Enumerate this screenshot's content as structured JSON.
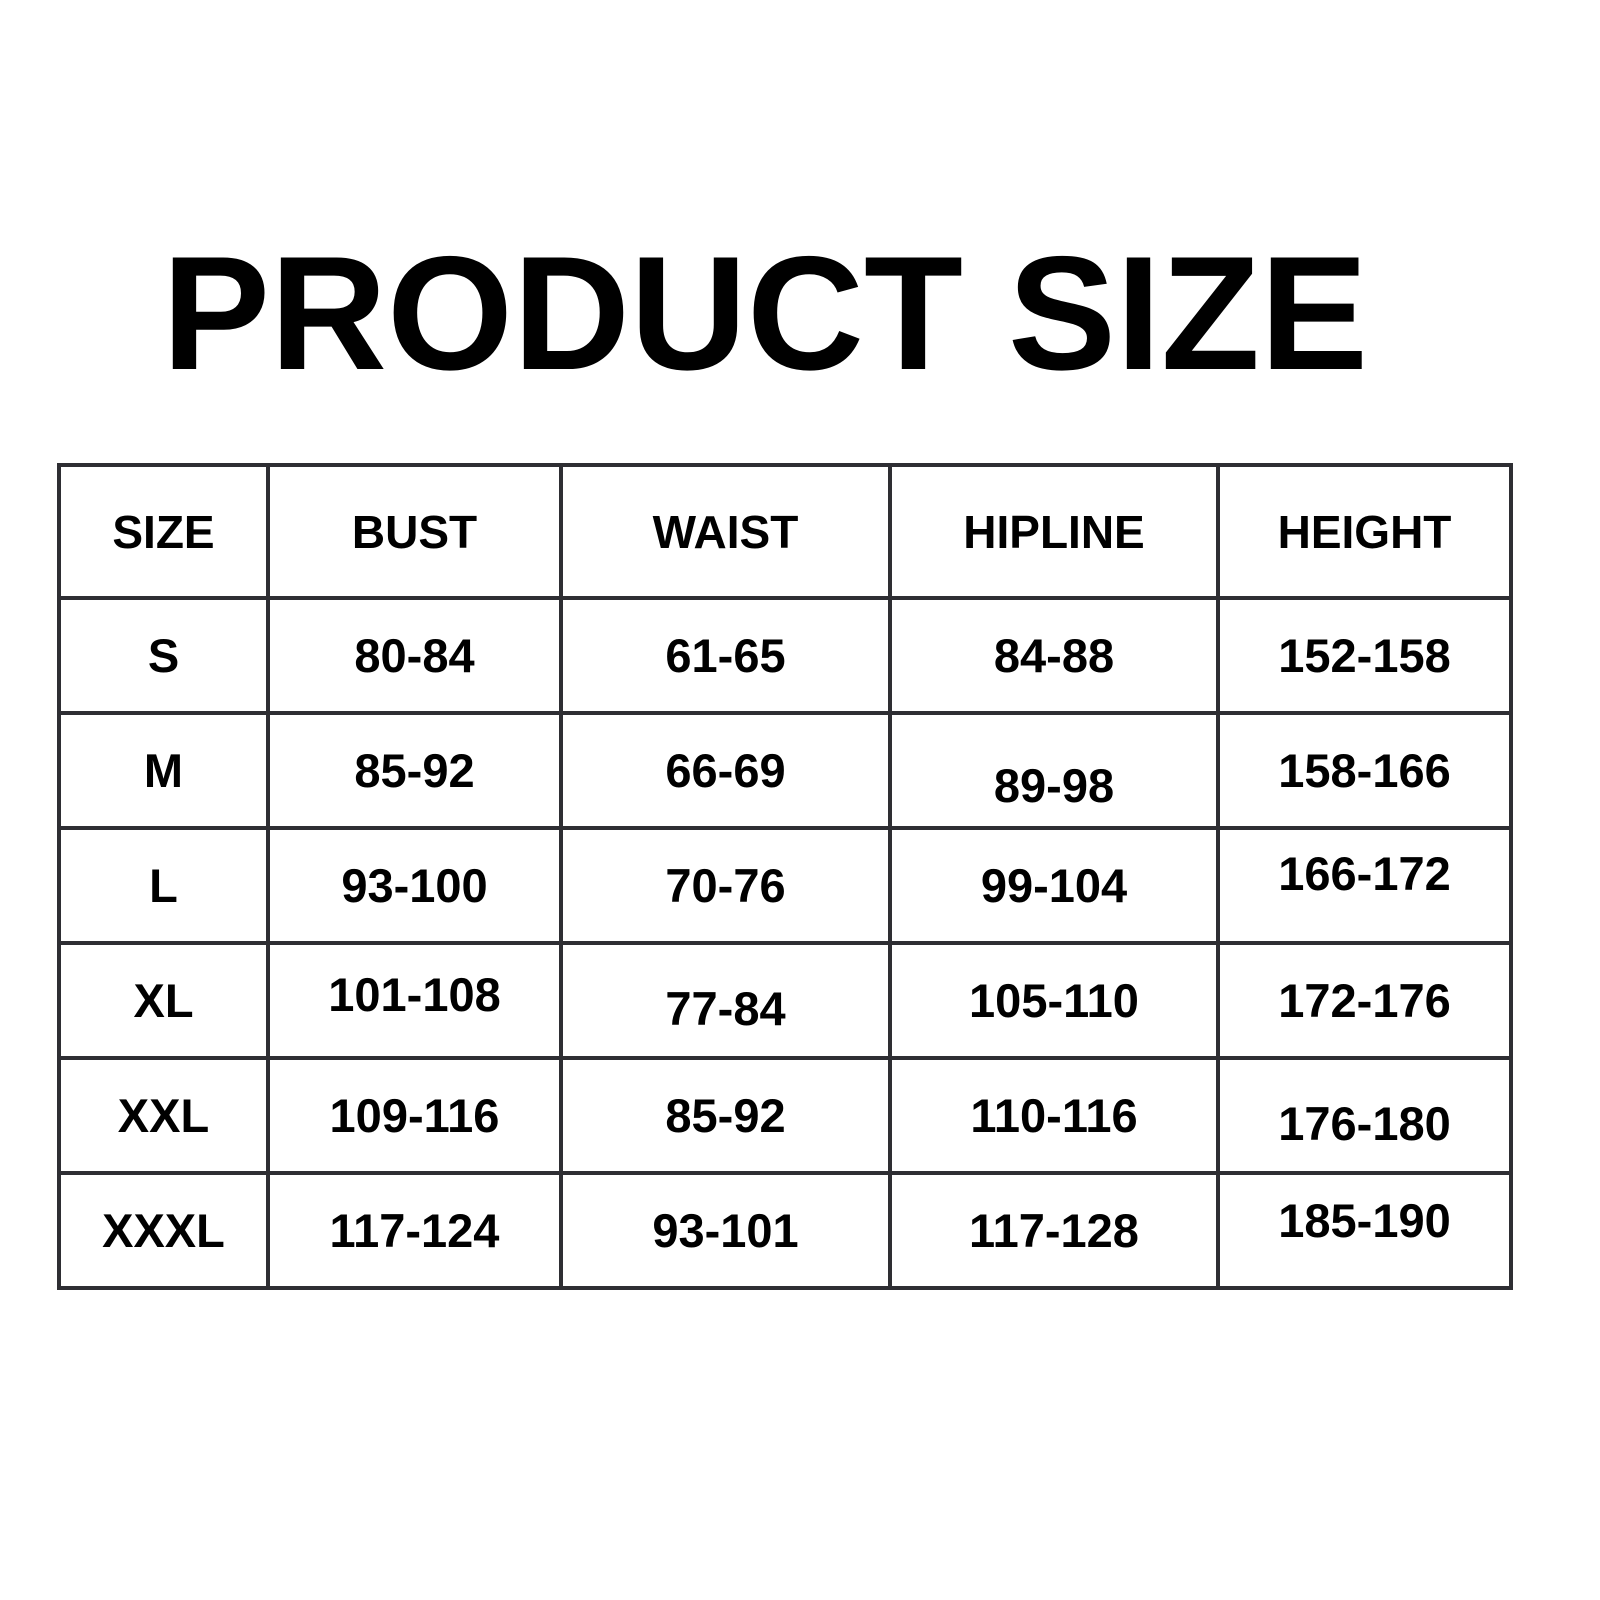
{
  "title": "PRODUCT SIZE",
  "colors": {
    "background": "#ffffff",
    "text": "#000000",
    "table_border": "#2e2e33",
    "cell_background": "#ffffff"
  },
  "chart_data": {
    "type": "table",
    "title": "PRODUCT SIZE",
    "columns": [
      "SIZE",
      "BUST",
      "WAIST",
      "HIPLINE",
      "HEIGHT"
    ],
    "rows": [
      [
        "S",
        "80-84",
        "61-65",
        "84-88",
        "152-158"
      ],
      [
        "M",
        "85-92",
        "66-69",
        "89-98",
        "158-166"
      ],
      [
        "L",
        "93-100",
        "70-76",
        "99-104",
        "166-172"
      ],
      [
        "XL",
        "101-108",
        "77-84",
        "105-110",
        "172-176"
      ],
      [
        "XXL",
        "109-116",
        "85-92",
        "110-116",
        "176-180"
      ],
      [
        "XXXL",
        "117-124",
        "93-101",
        "117-128",
        "185-190"
      ]
    ],
    "legend": null,
    "grid": true
  }
}
